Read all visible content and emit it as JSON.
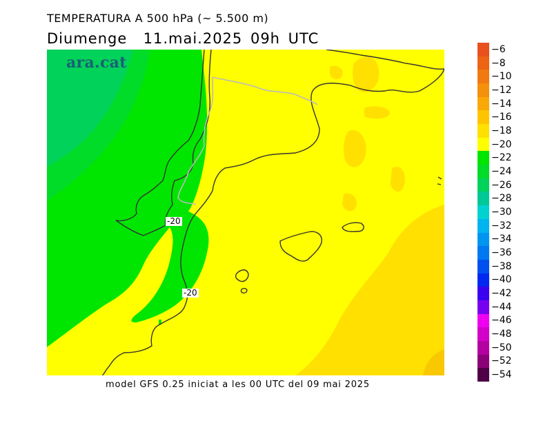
{
  "header": {
    "title": "TEMPERATURA A 500 hPa (~ 5.500 m)",
    "subtitle": "Diumenge  11.mai.2025 09h UTC"
  },
  "logo": {
    "text": "ara.cat"
  },
  "footer": {
    "text": "model GFS 0.25 iniciat a les 00 UTC del 09 mai 2025"
  },
  "contour_labels": [
    {
      "text": "-20"
    },
    {
      "text": "-20"
    }
  ],
  "colorbar": {
    "unit": "",
    "levels": [
      {
        "label": "-6",
        "color": "#e8501e"
      },
      {
        "label": "-8",
        "color": "#ec6414"
      },
      {
        "label": "-10",
        "color": "#f07a10"
      },
      {
        "label": "-12",
        "color": "#f5900c"
      },
      {
        "label": "-14",
        "color": "#faa808"
      },
      {
        "label": "-16",
        "color": "#ffc400"
      },
      {
        "label": "-18",
        "color": "#ffe000"
      },
      {
        "label": "-20",
        "color": "#ffff00"
      },
      {
        "label": "-22",
        "color": "#00e600"
      },
      {
        "label": "-24",
        "color": "#00dc28"
      },
      {
        "label": "-26",
        "color": "#00d25a"
      },
      {
        "label": "-28",
        "color": "#00c896"
      },
      {
        "label": "-30",
        "color": "#00d2d2"
      },
      {
        "label": "-32",
        "color": "#00b4f0"
      },
      {
        "label": "-34",
        "color": "#0096f0"
      },
      {
        "label": "-36",
        "color": "#0078f0"
      },
      {
        "label": "-38",
        "color": "#0050f0"
      },
      {
        "label": "-40",
        "color": "#0028f0"
      },
      {
        "label": "-42",
        "color": "#3c00f0"
      },
      {
        "label": "-44",
        "color": "#7800f0"
      },
      {
        "label": "-46",
        "color": "#f000f0"
      },
      {
        "label": "-48",
        "color": "#d200c8"
      },
      {
        "label": "-50",
        "color": "#b400a0"
      },
      {
        "label": "-52",
        "color": "#8c0078"
      },
      {
        "label": "-54",
        "color": "#500046"
      }
    ]
  },
  "map_colors": {
    "warm_fill": "#ffff00",
    "warmer_fill": "#ffe000",
    "cold_fill": "#00e600",
    "colder_fill": "#00dc28",
    "coldest_fill": "#00d25a",
    "coast": "#333333",
    "border": "#bbbbbb"
  }
}
